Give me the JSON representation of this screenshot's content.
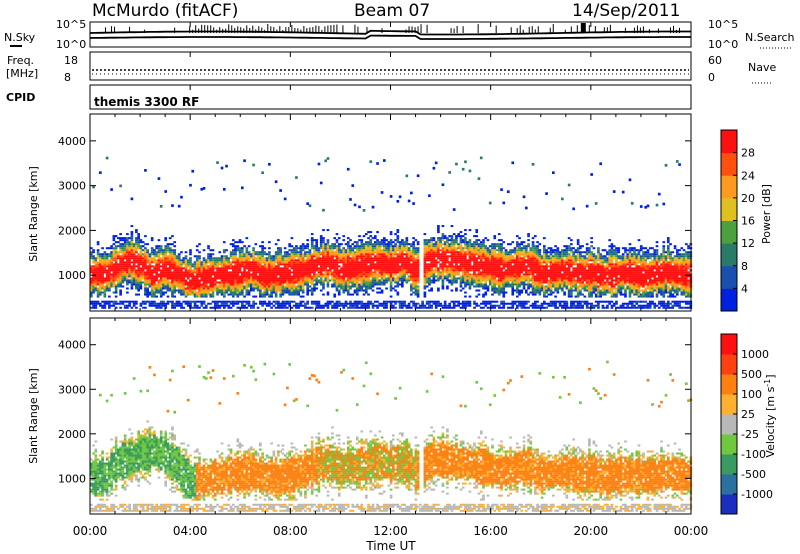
{
  "header": {
    "station": "McMurdo (fitACF)",
    "beam": "Beam 07",
    "date": "14/Sep/2011"
  },
  "summary_panels": {
    "nsky": {
      "label": "N.Sky",
      "ticks": [
        "10^5",
        "10^0"
      ],
      "right_label": "N.Search",
      "right_ticks": [
        "10^5",
        "10^0"
      ]
    },
    "freq": {
      "label_line1": "Freq.",
      "label_line2": "[MHz]",
      "ticks": [
        "18",
        "8"
      ],
      "right_label": "Nave",
      "right_ticks": [
        "60",
        "0"
      ]
    },
    "cpid": {
      "label": "CPID",
      "mode": "themis 3300 RF"
    }
  },
  "chart_data": [
    {
      "type": "heatmap",
      "title": "",
      "ylabel": "Slant Range [km]",
      "xlabel": "",
      "ylim": [
        200,
        4600
      ],
      "yticks": [
        "4000",
        "3000",
        "2000",
        "1000"
      ],
      "colorbar": {
        "label": "Power [dB]",
        "ticks": [
          "28",
          "24",
          "20",
          "16",
          "12",
          "8",
          "4"
        ],
        "colors": [
          "#0020e0",
          "#1a4fb0",
          "#2a7a6a",
          "#4da040",
          "#e0c020",
          "#ff9a20",
          "#ff5010",
          "#ff1010"
        ]
      },
      "series": [
        {
          "x": [
            0.0,
            0.6,
            1.0,
            1.5,
            2.0,
            2.5,
            3.0,
            3.5,
            4.0,
            4.5,
            5.0,
            5.5,
            6.0,
            6.5,
            7.0,
            7.5,
            8.0,
            8.5,
            9.0,
            9.5,
            10.0,
            10.5,
            11.0,
            11.5,
            12.0,
            12.5,
            13.0,
            13.5,
            14.0,
            14.5,
            15.0,
            15.5,
            16.0,
            16.5,
            17.0,
            17.5,
            18.0,
            18.5,
            19.0,
            19.5,
            20.0,
            20.5,
            21.0,
            21.5,
            22.0,
            22.5,
            23.0,
            23.5,
            24.0
          ],
          "y": [
            1000,
            1000,
            1150,
            1300,
            1200,
            1000,
            1150,
            1000,
            850,
            900,
            950,
            1000,
            1050,
            1100,
            950,
            1000,
            1050,
            1100,
            1200,
            1250,
            1100,
            1150,
            1200,
            1250,
            1200,
            1300,
            1050,
            1300,
            1350,
            1300,
            1250,
            1200,
            1150,
            1100,
            1150,
            1200,
            1000,
            1050,
            1100,
            1000,
            1050,
            950,
            1000,
            1050,
            950,
            1000,
            1050,
            1000,
            950
          ]
        }
      ]
    },
    {
      "type": "heatmap",
      "title": "",
      "ylabel": "Slant Range [km]",
      "xlabel": "Time UT",
      "ylim": [
        200,
        4600
      ],
      "yticks": [
        "4000",
        "3000",
        "2000",
        "1000"
      ],
      "xticks": [
        "00:00",
        "04:00",
        "08:00",
        "12:00",
        "16:00",
        "20:00",
        "00:00"
      ],
      "xrange": [
        0,
        24
      ],
      "colorbar": {
        "label": "Velocity [m s^-1]",
        "ticks": [
          "1000",
          "500",
          "100",
          "25",
          "-25",
          "-100",
          "-500",
          "-1000"
        ],
        "colors": [
          "#1a2fc0",
          "#2a70a0",
          "#3a9a60",
          "#70c840",
          "#b8b8b8",
          "#ffb030",
          "#ff8010",
          "#ff4010",
          "#ff1010"
        ]
      },
      "series": [
        {
          "x": [
            0.0,
            0.6,
            1.0,
            1.5,
            2.0,
            2.5,
            3.0,
            3.5,
            4.0,
            4.5,
            5.0,
            5.5,
            6.0,
            6.5,
            7.0,
            7.5,
            8.0,
            8.5,
            9.0,
            9.5,
            10.0,
            10.5,
            11.0,
            11.5,
            12.0,
            12.5,
            13.0,
            13.5,
            14.0,
            14.5,
            15.0,
            15.5,
            16.0,
            16.5,
            17.0,
            17.5,
            18.0,
            18.5,
            19.0,
            19.5,
            20.0,
            20.5,
            21.0,
            21.5,
            22.0,
            22.5,
            23.0,
            23.5,
            24.0
          ],
          "y": [
            1000,
            1000,
            1300,
            1400,
            1500,
            1600,
            1500,
            1200,
            900,
            950,
            1000,
            1050,
            1100,
            1100,
            1000,
            1000,
            1050,
            1150,
            1250,
            1350,
            1200,
            1250,
            1300,
            1350,
            1300,
            1350,
            1150,
            1350,
            1400,
            1350,
            1300,
            1250,
            1200,
            1150,
            1200,
            1250,
            1050,
            1100,
            1150,
            1050,
            1100,
            1000,
            1050,
            1100,
            1000,
            1050,
            1100,
            1050,
            1000
          ]
        }
      ]
    }
  ]
}
